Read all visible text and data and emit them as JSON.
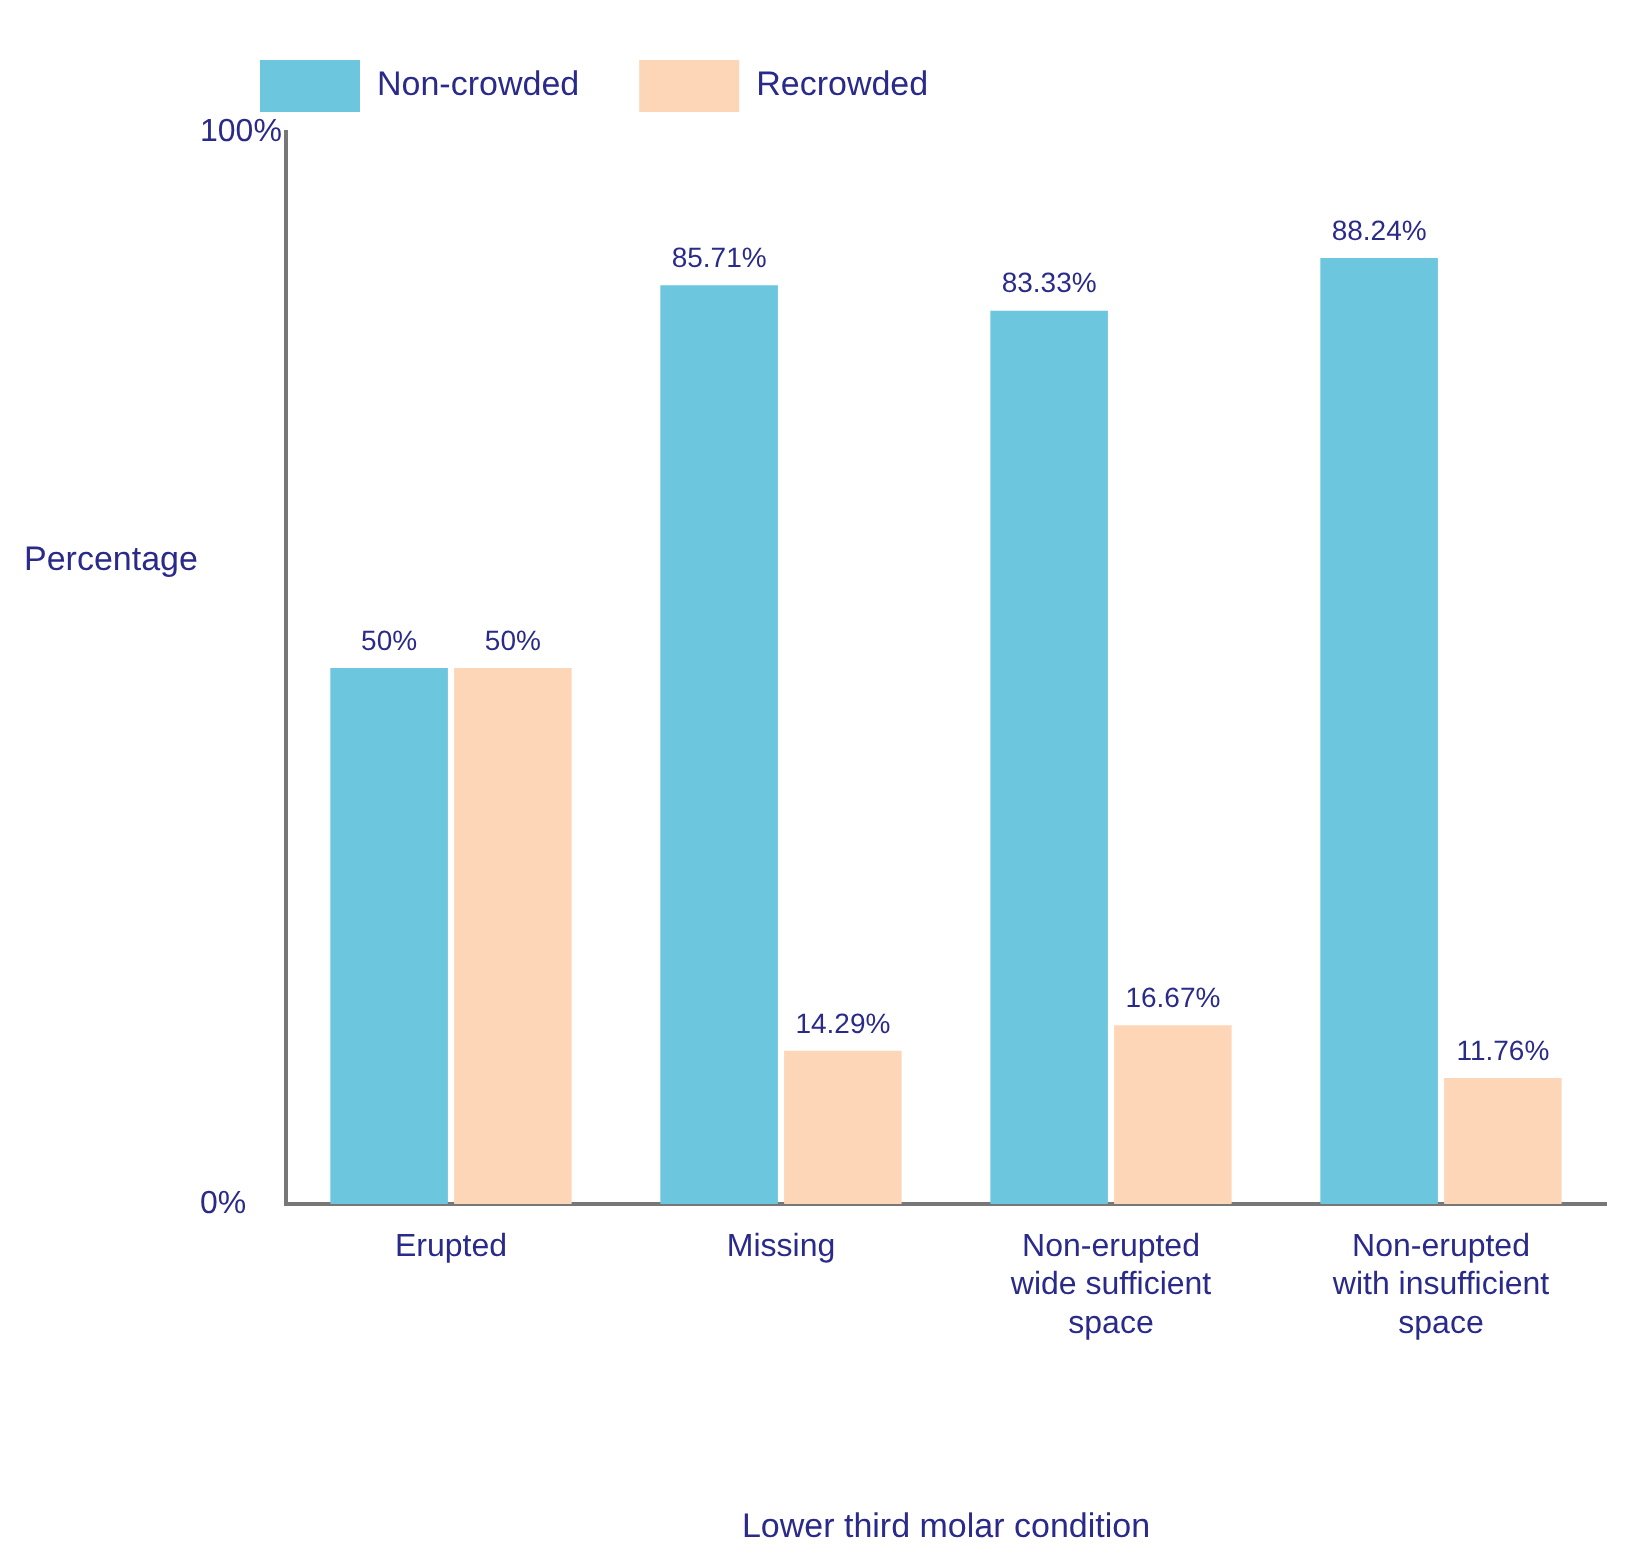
{
  "chart_data": {
    "type": "bar",
    "xlabel": "Lower third molar condition",
    "ylabel": "Percentage",
    "categories": [
      "Erupted",
      "Missing",
      "Non-erupted wide sufficient space",
      "Non-erupted with insufficient space"
    ],
    "series": [
      {
        "name": "Non-crowded",
        "color": "#6cc6de",
        "values": [
          50,
          85.71,
          83.33,
          88.24
        ]
      },
      {
        "name": "Recrowded",
        "color": "#fdd6b8",
        "values": [
          50,
          14.29,
          16.67,
          11.76
        ]
      }
    ],
    "ylim": [
      0,
      100
    ],
    "yticks": [
      {
        "value": 0,
        "label": "0%"
      },
      {
        "value": 100,
        "label": "100%"
      }
    ],
    "value_labels": [
      [
        "50%",
        "85.71%",
        "83.33%",
        "88.24%"
      ],
      [
        "50%",
        "14.29%",
        "16.67%",
        "11.76%"
      ]
    ],
    "grid": false,
    "legend": "top left"
  }
}
